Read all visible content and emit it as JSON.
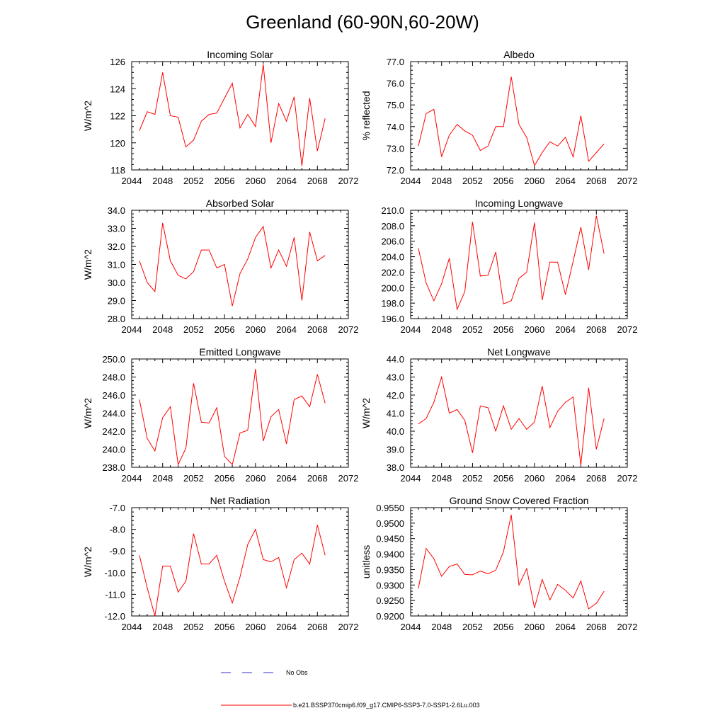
{
  "figure_title": "Greenland (60-90N,60-20W)",
  "legend": {
    "items": [
      {
        "label": "No Obs",
        "color": "#3333cc",
        "style": "dashed"
      },
      {
        "label": "b.e21.BSSP370cmip6.f09_g17.CMIP6-SSP3-7.0-SSP1-2.6Lu.003",
        "color": "#ff0000",
        "style": "solid"
      }
    ]
  },
  "chart_data": [
    {
      "type": "line",
      "title": "Incoming Solar",
      "ylabel": "W/m^2",
      "xlim": [
        2044,
        2072
      ],
      "xticks": [
        "2044",
        "2048",
        "2052",
        "2056",
        "2060",
        "2064",
        "2068",
        "2072"
      ],
      "ylim": [
        118,
        126
      ],
      "yticks": [
        "118",
        "120",
        "122",
        "124",
        "126"
      ],
      "series": [
        {
          "color": "#ff0000",
          "x": [
            2045,
            2046,
            2047,
            2048,
            2049,
            2050,
            2051,
            2052,
            2053,
            2054,
            2055,
            2056,
            2057,
            2058,
            2059,
            2060,
            2061,
            2062,
            2063,
            2064,
            2065,
            2066,
            2067,
            2068,
            2069
          ],
          "values": [
            120.9,
            122.3,
            122.1,
            125.2,
            122.0,
            121.9,
            119.7,
            120.2,
            121.6,
            122.1,
            122.2,
            123.3,
            124.4,
            121.1,
            122.1,
            121.2,
            125.8,
            120.0,
            122.9,
            121.6,
            123.4,
            118.3,
            123.3,
            119.4,
            121.8
          ]
        }
      ]
    },
    {
      "type": "line",
      "title": "Albedo",
      "ylabel": "% reflected",
      "xlim": [
        2044,
        2072
      ],
      "xticks": [
        "2044",
        "2048",
        "2052",
        "2056",
        "2060",
        "2064",
        "2068",
        "2072"
      ],
      "ylim": [
        72.0,
        77.0
      ],
      "yticks": [
        "72.0",
        "73.0",
        "74.0",
        "75.0",
        "76.0",
        "77.0"
      ],
      "series": [
        {
          "color": "#ff0000",
          "x": [
            2045,
            2046,
            2047,
            2048,
            2049,
            2050,
            2051,
            2052,
            2053,
            2054,
            2055,
            2056,
            2057,
            2058,
            2059,
            2060,
            2061,
            2062,
            2063,
            2064,
            2065,
            2066,
            2067,
            2068,
            2069
          ],
          "values": [
            73.1,
            74.6,
            74.8,
            72.6,
            73.6,
            74.1,
            73.8,
            73.6,
            72.9,
            73.1,
            74.0,
            74.0,
            76.3,
            74.1,
            73.5,
            72.2,
            72.8,
            73.3,
            73.1,
            73.5,
            72.6,
            74.5,
            72.4,
            72.8,
            73.2
          ]
        }
      ]
    },
    {
      "type": "line",
      "title": "Absorbed Solar",
      "ylabel": "W/m^2",
      "xlim": [
        2044,
        2072
      ],
      "xticks": [
        "2044",
        "2048",
        "2052",
        "2056",
        "2060",
        "2064",
        "2068",
        "2072"
      ],
      "ylim": [
        28.0,
        34.0
      ],
      "yticks": [
        "28.0",
        "29.0",
        "30.0",
        "31.0",
        "32.0",
        "33.0",
        "34.0"
      ],
      "series": [
        {
          "color": "#ff0000",
          "x": [
            2045,
            2046,
            2047,
            2048,
            2049,
            2050,
            2051,
            2052,
            2053,
            2054,
            2055,
            2056,
            2057,
            2058,
            2059,
            2060,
            2061,
            2062,
            2063,
            2064,
            2065,
            2066,
            2067,
            2068,
            2069
          ],
          "values": [
            31.2,
            30.0,
            29.5,
            33.3,
            31.2,
            30.4,
            30.2,
            30.6,
            31.8,
            31.8,
            30.8,
            31.0,
            28.7,
            30.5,
            31.3,
            32.5,
            33.1,
            30.8,
            31.8,
            30.9,
            32.5,
            29.0,
            32.8,
            31.2,
            31.5
          ]
        }
      ]
    },
    {
      "type": "line",
      "title": "Incoming Longwave",
      "ylabel": "",
      "xlim": [
        2044,
        2072
      ],
      "xticks": [
        "2044",
        "2048",
        "2052",
        "2056",
        "2060",
        "2064",
        "2068",
        "2072"
      ],
      "ylim": [
        196.0,
        210.0
      ],
      "yticks": [
        "196.0",
        "198.0",
        "200.0",
        "202.0",
        "204.0",
        "206.0",
        "208.0",
        "210.0"
      ],
      "series": [
        {
          "color": "#ff0000",
          "x": [
            2045,
            2046,
            2047,
            2048,
            2049,
            2050,
            2051,
            2052,
            2053,
            2054,
            2055,
            2056,
            2057,
            2058,
            2059,
            2060,
            2061,
            2062,
            2063,
            2064,
            2065,
            2066,
            2067,
            2068,
            2069
          ],
          "values": [
            205.1,
            200.6,
            198.3,
            200.5,
            203.8,
            197.2,
            199.5,
            208.5,
            201.5,
            201.6,
            204.6,
            197.9,
            198.3,
            201.2,
            202.0,
            208.4,
            198.4,
            203.3,
            203.3,
            199.1,
            203.4,
            207.8,
            202.3,
            209.3,
            204.4
          ]
        }
      ]
    },
    {
      "type": "line",
      "title": "Emitted Longwave",
      "ylabel": "W/m^2",
      "xlim": [
        2044,
        2072
      ],
      "xticks": [
        "2044",
        "2048",
        "2052",
        "2056",
        "2060",
        "2064",
        "2068",
        "2072"
      ],
      "ylim": [
        238.0,
        250.0
      ],
      "yticks": [
        "238.0",
        "240.0",
        "242.0",
        "244.0",
        "246.0",
        "248.0",
        "250.0"
      ],
      "series": [
        {
          "color": "#ff0000",
          "x": [
            2045,
            2046,
            2047,
            2048,
            2049,
            2050,
            2051,
            2052,
            2053,
            2054,
            2055,
            2056,
            2057,
            2058,
            2059,
            2060,
            2061,
            2062,
            2063,
            2064,
            2065,
            2066,
            2067,
            2068,
            2069
          ],
          "values": [
            245.5,
            241.2,
            239.8,
            243.5,
            244.7,
            238.3,
            240.1,
            247.3,
            243.0,
            242.9,
            244.6,
            239.2,
            238.3,
            241.8,
            242.1,
            248.9,
            240.9,
            243.6,
            244.4,
            240.6,
            245.5,
            245.9,
            244.7,
            248.3,
            245.1
          ]
        }
      ]
    },
    {
      "type": "line",
      "title": "Net Longwave",
      "ylabel": "W/m^2",
      "xlim": [
        2044,
        2072
      ],
      "xticks": [
        "2044",
        "2048",
        "2052",
        "2056",
        "2060",
        "2064",
        "2068",
        "2072"
      ],
      "ylim": [
        38.0,
        44.0
      ],
      "yticks": [
        "38.0",
        "39.0",
        "40.0",
        "41.0",
        "42.0",
        "43.0",
        "44.0"
      ],
      "series": [
        {
          "color": "#ff0000",
          "x": [
            2045,
            2046,
            2047,
            2048,
            2049,
            2050,
            2051,
            2052,
            2053,
            2054,
            2055,
            2056,
            2057,
            2058,
            2059,
            2060,
            2061,
            2062,
            2063,
            2064,
            2065,
            2066,
            2067,
            2068,
            2069
          ],
          "values": [
            40.4,
            40.7,
            41.6,
            43.0,
            41.0,
            41.2,
            40.6,
            38.8,
            41.4,
            41.3,
            40.0,
            41.4,
            40.1,
            40.7,
            40.1,
            40.5,
            42.5,
            40.2,
            41.1,
            41.6,
            41.9,
            38.1,
            42.4,
            39.0,
            40.7
          ]
        }
      ]
    },
    {
      "type": "line",
      "title": "Net Radiation",
      "ylabel": "W/m^2",
      "xlim": [
        2044,
        2072
      ],
      "xticks": [
        "2044",
        "2048",
        "2052",
        "2056",
        "2060",
        "2064",
        "2068",
        "2072"
      ],
      "ylim": [
        -12.0,
        -7.0
      ],
      "yticks": [
        "-12.0",
        "-11.0",
        "-10.0",
        "-9.0",
        "-8.0",
        "-7.0"
      ],
      "series": [
        {
          "color": "#ff0000",
          "x": [
            2045,
            2046,
            2047,
            2048,
            2049,
            2050,
            2051,
            2052,
            2053,
            2054,
            2055,
            2056,
            2057,
            2058,
            2059,
            2060,
            2061,
            2062,
            2063,
            2064,
            2065,
            2066,
            2067,
            2068,
            2069
          ],
          "values": [
            -9.2,
            -10.7,
            -12.0,
            -9.7,
            -9.7,
            -10.9,
            -10.4,
            -8.2,
            -9.6,
            -9.6,
            -9.2,
            -10.4,
            -11.4,
            -10.2,
            -8.7,
            -8.0,
            -9.4,
            -9.5,
            -9.3,
            -10.7,
            -9.4,
            -9.1,
            -9.6,
            -7.8,
            -9.2
          ]
        }
      ]
    },
    {
      "type": "line",
      "title": "Ground Snow Covered Fraction",
      "ylabel": "unitless",
      "xlim": [
        2044,
        2072
      ],
      "xticks": [
        "2044",
        "2048",
        "2052",
        "2056",
        "2060",
        "2064",
        "2068",
        "2072"
      ],
      "ylim": [
        0.92,
        0.955
      ],
      "yticks": [
        "0.9200",
        "0.9250",
        "0.9300",
        "0.9350",
        "0.9400",
        "0.9450",
        "0.9500",
        "0.9550"
      ],
      "series": [
        {
          "color": "#ff0000",
          "x": [
            2045,
            2046,
            2047,
            2048,
            2049,
            2050,
            2051,
            2052,
            2053,
            2054,
            2055,
            2056,
            2057,
            2058,
            2059,
            2060,
            2061,
            2062,
            2063,
            2064,
            2065,
            2066,
            2067,
            2068,
            2069
          ],
          "values": [
            0.9289,
            0.9418,
            0.9385,
            0.9328,
            0.936,
            0.9368,
            0.9334,
            0.9333,
            0.9345,
            0.9336,
            0.9348,
            0.9407,
            0.9527,
            0.93,
            0.9353,
            0.9226,
            0.9318,
            0.9252,
            0.9302,
            0.9283,
            0.9258,
            0.9313,
            0.9223,
            0.9241,
            0.928
          ]
        }
      ]
    }
  ]
}
